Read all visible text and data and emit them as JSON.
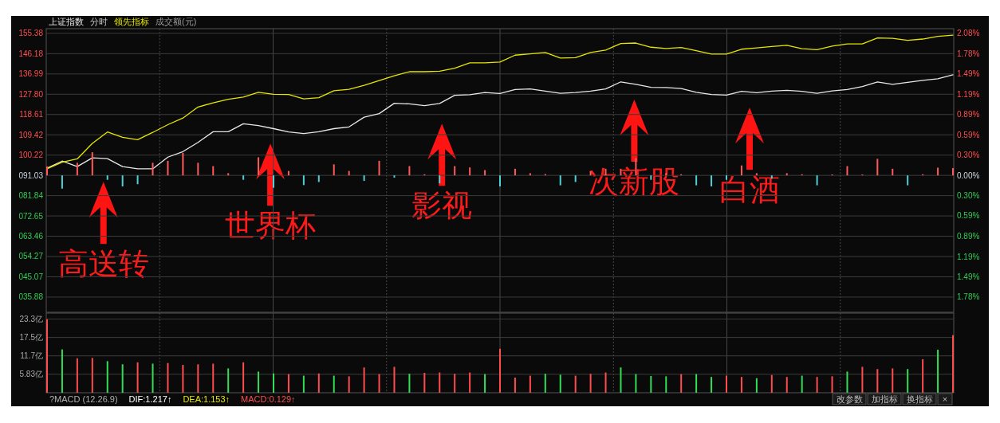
{
  "chart_data": [
    {
      "type": "line",
      "subtitle": "分时",
      "grid": true,
      "tick_labels": "y",
      "annotations": [
        "成交额(元)",
        "高送转",
        "世界杯",
        "影视",
        "次新股",
        "白酒"
      ],
      "categories": [
        null,
        null,
        null,
        null,
        null,
        null,
        null,
        null,
        null,
        null,
        null,
        null,
        null,
        null,
        null,
        null,
        null,
        null,
        null,
        null,
        null,
        null,
        null,
        null,
        null,
        null,
        null,
        null,
        null,
        null,
        null,
        null,
        null,
        null,
        null,
        null,
        null,
        null,
        null,
        null,
        null,
        null,
        null,
        null,
        null,
        null,
        null,
        null,
        null,
        null,
        null,
        null,
        null,
        null,
        null,
        null,
        null,
        null,
        null,
        null,
        null
      ],
      "ylim": [
        29,
        157.5
      ],
      "yticks": [
        {
          "value": 155.38,
          "label": "155.38"
        },
        {
          "value": 146.18,
          "label": "146.18"
        },
        {
          "value": 136.99,
          "label": "136.99"
        },
        {
          "value": 127.8,
          "label": "127.80"
        },
        {
          "value": 118.61,
          "label": "118.61"
        },
        {
          "value": 109.42,
          "label": "109.42"
        },
        {
          "value": 100.22,
          "label": "100.22"
        },
        {
          "value": 91.03,
          "label": "091.03"
        },
        {
          "value": 81.84,
          "label": "081.84"
        },
        {
          "value": 72.65,
          "label": "072.65"
        },
        {
          "value": 63.46,
          "label": "063.46"
        },
        {
          "value": 54.27,
          "label": "054.27"
        },
        {
          "value": 45.07,
          "label": "045.07"
        },
        {
          "value": 35.88,
          "label": "035.88"
        }
      ],
      "y2lim": [
        -2.005,
        2.148
      ],
      "y2ticks": [
        {
          "value": 2.08,
          "label": "2.08%"
        },
        {
          "value": 1.78,
          "label": "1.78%"
        },
        {
          "value": 1.49,
          "label": "1.49%"
        },
        {
          "value": 1.19,
          "label": "1.19%"
        },
        {
          "value": 0.89,
          "label": "0.89%"
        },
        {
          "value": 0.59,
          "label": "0.59%"
        },
        {
          "value": 0.3,
          "label": "0.30%"
        },
        {
          "value": 0,
          "label": "0.00%"
        },
        {
          "value": -0.3,
          "label": "0.30%"
        },
        {
          "value": -0.59,
          "label": "0.59%"
        },
        {
          "value": -0.89,
          "label": "0.89%"
        },
        {
          "value": -1.19,
          "label": "1.19%"
        },
        {
          "value": -1.49,
          "label": "1.49%"
        },
        {
          "value": -1.78,
          "label": "1.78%"
        }
      ],
      "series": [
        {
          "name": "上证指数",
          "color": "#e8e8e8",
          "values": [
            94.3,
            97.5,
            95,
            99,
            98.6,
            95,
            94,
            94,
            99.3,
            101.8,
            106,
            110.8,
            110.8,
            114.4,
            113.6,
            112.2,
            110.7,
            110,
            110.8,
            112.2,
            113,
            117.4,
            119,
            123.7,
            123.4,
            122.6,
            123.6,
            127.3,
            127.6,
            128.6,
            128.1,
            129.9,
            130.2,
            129.2,
            128.2,
            128.6,
            129.2,
            130.2,
            133.4,
            132.3,
            130.9,
            130.8,
            130.4,
            128.7,
            127.7,
            127.4,
            129.1,
            128.5,
            129.2,
            129.6,
            129.1,
            128.2,
            129.3,
            129.9,
            131.3,
            133.4,
            132.3,
            133.2,
            134.1,
            134.8,
            136.6
          ]
        },
        {
          "name": "领先指标",
          "color": "#e6e600",
          "values": [
            94,
            97,
            98.5,
            105.5,
            110.7,
            108.3,
            107.2,
            110.5,
            114,
            117,
            122,
            123.9,
            125.5,
            126.5,
            128.7,
            127.8,
            127.7,
            125.7,
            126.2,
            129.4,
            130,
            131.8,
            134,
            136.2,
            138,
            138,
            138.2,
            139.6,
            142,
            142,
            142.4,
            145.5,
            146.1,
            146.7,
            144.2,
            144.4,
            146.7,
            147.8,
            150.8,
            151,
            149.1,
            148.5,
            149,
            147.5,
            146,
            146,
            148.2,
            148.8,
            149.4,
            150,
            148.4,
            148,
            149.6,
            150.6,
            150.6,
            153.3,
            153.1,
            152.2,
            152.8,
            154,
            154.6
          ]
        },
        {
          "type": "bar",
          "values": [
            4.0,
            -6,
            5.7,
            10.5,
            -2,
            -5,
            -4,
            5.7,
            6.6,
            10.2,
            5.7,
            4.2,
            1,
            -2,
            8.2,
            -5.6,
            2,
            -4.4,
            -3,
            5,
            2,
            -2.5,
            6.6,
            -1,
            4.2,
            0.5,
            -3.6,
            4.2,
            3.6,
            2.4,
            -5,
            3,
            1,
            0.6,
            -4.5,
            -3,
            2,
            3,
            3,
            7.8,
            -2,
            1,
            0.5,
            -4.5,
            -5,
            -2,
            4.5,
            1,
            -1.5,
            1,
            0.5,
            -4.5,
            0.4,
            4.2,
            0.4,
            7.5,
            3,
            -4.5,
            0.5,
            3.5,
            3.3
          ],
          "base": [
            91.03,
            91.03,
            91.03,
            91.03,
            91.03,
            91.03,
            91.03,
            91.03,
            91.03,
            91.03,
            91.03,
            91.03,
            91.03,
            91.03,
            91.03,
            91.03,
            91.03,
            91.03,
            91.03,
            91.03,
            91.03,
            91.03,
            91.03,
            91.03,
            91.03,
            91.03,
            91.03,
            91.03,
            91.03,
            91.03,
            91.03,
            91.03,
            91.03,
            91.03,
            91.03,
            91.03,
            91.03,
            91.03,
            91.03,
            91.03,
            91.03,
            91.03,
            91.03,
            91.03,
            91.03,
            91.03,
            91.03,
            91.03,
            91.03,
            91.03,
            91.03,
            91.03,
            91.03,
            91.03,
            91.03,
            91.03,
            91.03,
            91.03,
            91.03,
            91.03,
            91.03
          ],
          "colors": [
            "#ff5a5a",
            "#4fd0d8",
            "#ff5a5a",
            "#ff5a5a",
            "#4fd0d8",
            "#4fd0d8",
            "#4fd0d8",
            "#ff5a5a",
            "#ff5a5a",
            "#ff5a5a",
            "#ff5a5a",
            "#ff5a5a",
            "#ff5a5a",
            "#4fd0d8",
            "#ff5a5a",
            "#4fd0d8",
            "#ff5a5a",
            "#4fd0d8",
            "#4fd0d8",
            "#ff5a5a",
            "#ff5a5a",
            "#4fd0d8",
            "#ff5a5a",
            "#4fd0d8",
            "#ff5a5a",
            "#ff5a5a",
            "#4fd0d8",
            "#ff5a5a",
            "#ff5a5a",
            "#ff5a5a",
            "#4fd0d8",
            "#ff5a5a",
            "#ff5a5a",
            "#ff5a5a",
            "#4fd0d8",
            "#4fd0d8",
            "#ff5a5a",
            "#ff5a5a",
            "#ff5a5a",
            "#ff5a5a",
            "#4fd0d8",
            "#ff5a5a",
            "#ff5a5a",
            "#4fd0d8",
            "#4fd0d8",
            "#4fd0d8",
            "#ff5a5a",
            "#ff5a5a",
            "#4fd0d8",
            "#ff5a5a",
            "#ff5a5a",
            "#4fd0d8",
            "#ff5a5a",
            "#ff5a5a",
            "#ff5a5a",
            "#ff5a5a",
            "#ff5a5a",
            "#4fd0d8",
            "#ff5a5a",
            "#ff5a5a",
            "#ff5a5a"
          ]
        }
      ]
    },
    {
      "type": "bar",
      "grid": true,
      "tick_labels": "y",
      "annotations": [
        "?MACD (12.26.9)",
        "DIF:1.217↑",
        "DEA:1.153↑",
        "MACD:0.129↑",
        "改参数",
        "加指标",
        "换指标",
        "×"
      ],
      "categories": [
        null,
        null,
        null,
        null,
        null,
        null,
        null,
        null,
        null,
        null,
        null,
        null,
        null,
        null,
        null,
        null,
        null,
        null,
        null,
        null,
        null,
        null,
        null,
        null,
        null,
        null,
        null,
        null,
        null,
        null,
        null,
        null,
        null,
        null,
        null,
        null,
        null,
        null,
        null,
        null,
        null,
        null,
        null,
        null,
        null,
        null,
        null,
        null,
        null,
        null,
        null,
        null,
        null,
        null,
        null,
        null,
        null,
        null,
        null,
        null,
        null
      ],
      "ylim": [
        0,
        25.2
      ],
      "yticks": [
        {
          "value": 5.83,
          "label": "5.83亿"
        },
        {
          "value": 11.66,
          "label": "11.7亿"
        },
        {
          "value": 17.49,
          "label": "17.5亿"
        },
        {
          "value": 23.32,
          "label": "23.3亿"
        }
      ],
      "values": [
        23.2,
        13.7,
        10.9,
        11,
        10,
        9,
        9.6,
        9.2,
        9.4,
        8.8,
        9,
        9.2,
        7.7,
        9.6,
        6.7,
        6.1,
        5.9,
        5.4,
        6.1,
        5.4,
        5.2,
        8,
        5.9,
        8.2,
        6,
        6.3,
        6.4,
        6,
        6.4,
        5.9,
        13.9,
        4.8,
        5.4,
        6,
        5.7,
        5.4,
        6,
        6.4,
        8,
        5.9,
        5.3,
        5.2,
        5.9,
        5.9,
        5,
        5.4,
        5,
        4.6,
        5.6,
        5,
        5.4,
        5,
        5.2,
        6.7,
        8.2,
        7.5,
        7.7,
        7.5,
        10.6,
        13.6,
        18.2
      ],
      "colors": [
        "#ff4d4d",
        "#33dd55",
        "#ff4d4d",
        "#ff4d4d",
        "#33dd55",
        "#33dd55",
        "#ff4d4d",
        "#33dd55",
        "#ff4d4d",
        "#ff4d4d",
        "#ff4d4d",
        "#ff4d4d",
        "#33dd55",
        "#ff4d4d",
        "#33dd55",
        "#33dd55",
        "#ff4d4d",
        "#33dd55",
        "#ff4d4d",
        "#33dd55",
        "#ff4d4d",
        "#ff4d4d",
        "#ff4d4d",
        "#ff4d4d",
        "#33dd55",
        "#ff4d4d",
        "#ff4d4d",
        "#ff4d4d",
        "#ff4d4d",
        "#33dd55",
        "#ff4d4d",
        "#ff4d4d",
        "#ff4d4d",
        "#33dd55",
        "#33dd55",
        "#ff4d4d",
        "#ff4d4d",
        "#ff4d4d",
        "#33dd55",
        "#33dd55",
        "#33dd55",
        "#33dd55",
        "#ff4d4d",
        "#33dd55",
        "#33dd55",
        "#ff4d4d",
        "#ff4d4d",
        "#33dd55",
        "#ff4d4d",
        "#ff4d4d",
        "#33dd55",
        "#ff4d4d",
        "#ff4d4d",
        "#33dd55",
        "#ff4d4d",
        "#ff4d4d",
        "#ff4d4d",
        "#33dd55",
        "#ff4d4d",
        "#33dd55",
        "#ff4d4d"
      ]
    }
  ]
}
